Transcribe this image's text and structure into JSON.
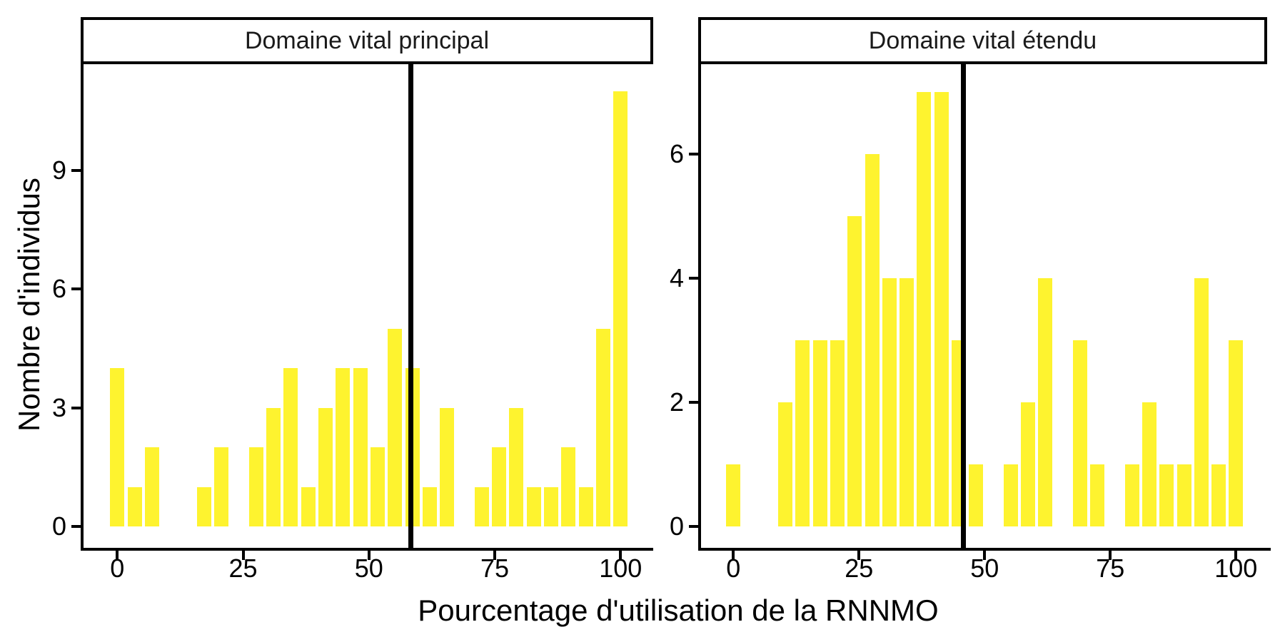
{
  "figure": {
    "x_axis_title": "Pourcentage d'utilisation de la RNNMO",
    "y_axis_title": "Nombre d'individus"
  },
  "chart_data": {
    "type": "bar",
    "subtype": "faceted-histogram",
    "title": "",
    "xlabel": "Pourcentage d'utilisation de la RNNMO",
    "ylabel": "Nombre d'individus",
    "bar_fill": "#FEF32F",
    "vline_color": "#000000",
    "axis_color": "#000000",
    "bin_width": 3.45,
    "x_ticks": [
      0,
      25,
      50,
      75,
      100
    ],
    "xlim": [
      -7.3,
      106.5
    ],
    "grid": "off",
    "legend": "none",
    "bin_centers": [
      0,
      3.45,
      6.9,
      10.34,
      13.79,
      17.24,
      20.69,
      24.14,
      27.59,
      31.03,
      34.48,
      37.93,
      41.38,
      44.83,
      48.28,
      51.72,
      55.17,
      58.62,
      62.07,
      65.52,
      68.97,
      72.41,
      75.86,
      79.31,
      82.76,
      86.21,
      89.66,
      93.1,
      96.55,
      100
    ],
    "facets": [
      {
        "label": "Domaine vital principal",
        "counts": [
          4,
          1,
          2,
          0,
          0,
          1,
          2,
          0,
          2,
          3,
          4,
          1,
          3,
          4,
          4,
          2,
          5,
          4,
          1,
          3,
          0,
          1,
          2,
          3,
          1,
          1,
          2,
          1,
          5,
          11
        ],
        "y_ticks": [
          0,
          3,
          6,
          9
        ],
        "ylim": [
          0,
          11.7
        ],
        "vline_x": 58.3
      },
      {
        "label": "Domaine vital étendu",
        "counts": [
          1,
          0,
          0,
          2,
          3,
          3,
          3,
          5,
          6,
          4,
          4,
          7,
          7,
          3,
          1,
          0,
          1,
          2,
          4,
          0,
          3,
          1,
          0,
          1,
          2,
          1,
          1,
          4,
          1,
          3
        ],
        "y_ticks": [
          0,
          2,
          4,
          6
        ],
        "ylim": [
          0,
          7.45
        ],
        "vline_x": 45.8
      }
    ]
  }
}
